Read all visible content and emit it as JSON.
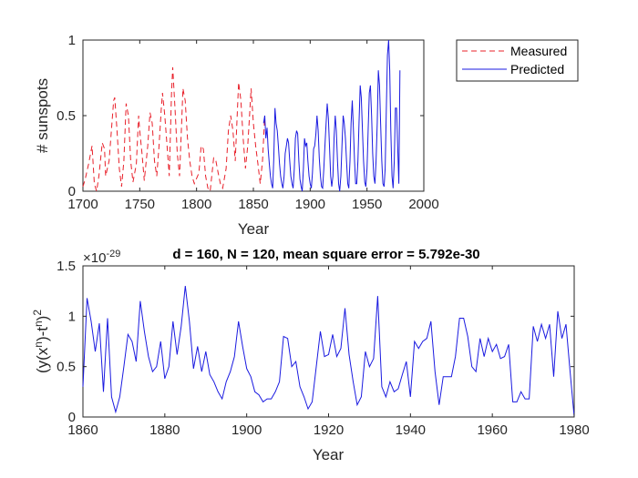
{
  "chart_data": [
    {
      "type": "line",
      "title": "",
      "xlabel": "Year",
      "ylabel": "# sunspots",
      "xlim": [
        1700,
        2000
      ],
      "ylim": [
        0,
        1
      ],
      "xticks": [
        "1700",
        "1750",
        "1800",
        "1850",
        "1900",
        "1950",
        "2000"
      ],
      "yticks": [
        "0",
        "0.5",
        "1"
      ],
      "grid": false,
      "legend_position": "top-right",
      "series": [
        {
          "name": "Measured",
          "color": "#e8202a",
          "style": "dashed",
          "x": [
            1700,
            1702,
            1705,
            1708,
            1710,
            1712,
            1714,
            1717,
            1719,
            1720,
            1723,
            1725,
            1727,
            1728,
            1730,
            1732,
            1734,
            1736,
            1738,
            1740,
            1742,
            1744,
            1747,
            1749,
            1750,
            1752,
            1754,
            1757,
            1759,
            1761,
            1763,
            1765,
            1767,
            1769,
            1770,
            1772,
            1774,
            1776,
            1778,
            1779,
            1781,
            1783,
            1785,
            1787,
            1788,
            1790,
            1792,
            1794,
            1796,
            1798,
            1802,
            1804,
            1806,
            1808,
            1810,
            1812,
            1815,
            1817,
            1819,
            1821,
            1823,
            1826,
            1828,
            1830,
            1832,
            1834,
            1837,
            1839,
            1841,
            1843,
            1845,
            1847,
            1848,
            1850,
            1852,
            1854,
            1856,
            1858,
            1860
          ],
          "y": [
            0.03,
            0.08,
            0.18,
            0.3,
            0.05,
            0.0,
            0.1,
            0.32,
            0.28,
            0.1,
            0.2,
            0.4,
            0.6,
            0.62,
            0.4,
            0.15,
            0.03,
            0.2,
            0.58,
            0.5,
            0.2,
            0.06,
            0.18,
            0.5,
            0.4,
            0.25,
            0.07,
            0.3,
            0.52,
            0.45,
            0.2,
            0.1,
            0.3,
            0.55,
            0.65,
            0.5,
            0.3,
            0.1,
            0.65,
            0.82,
            0.55,
            0.25,
            0.1,
            0.48,
            0.68,
            0.6,
            0.35,
            0.2,
            0.1,
            0.05,
            0.12,
            0.3,
            0.28,
            0.1,
            0.02,
            0.0,
            0.22,
            0.2,
            0.12,
            0.05,
            0.02,
            0.15,
            0.4,
            0.5,
            0.4,
            0.2,
            0.72,
            0.6,
            0.35,
            0.15,
            0.3,
            0.55,
            0.68,
            0.45,
            0.3,
            0.18,
            0.05,
            0.2,
            0.5
          ]
        },
        {
          "name": "Predicted",
          "color": "#1a1ae0",
          "style": "solid",
          "x": [
            1859,
            1860,
            1861,
            1862,
            1863,
            1864,
            1865,
            1866,
            1867,
            1868,
            1869,
            1870,
            1871,
            1872,
            1873,
            1874,
            1875,
            1876,
            1877,
            1878,
            1879,
            1880,
            1881,
            1882,
            1883,
            1884,
            1885,
            1886,
            1887,
            1888,
            1889,
            1890,
            1891,
            1892,
            1893,
            1894,
            1895,
            1896,
            1897,
            1898,
            1899,
            1900,
            1901,
            1902,
            1903,
            1904,
            1905,
            1906,
            1907,
            1908,
            1909,
            1910,
            1911,
            1912,
            1913,
            1914,
            1915,
            1916,
            1917,
            1918,
            1919,
            1920,
            1921,
            1922,
            1923,
            1924,
            1925,
            1926,
            1927,
            1928,
            1929,
            1930,
            1931,
            1932,
            1933,
            1934,
            1935,
            1936,
            1937,
            1938,
            1939,
            1940,
            1941,
            1942,
            1943,
            1944,
            1945,
            1946,
            1947,
            1948,
            1949,
            1950,
            1951,
            1952,
            1953,
            1954,
            1955,
            1956,
            1957,
            1958,
            1959,
            1960,
            1961,
            1962,
            1963,
            1964,
            1965,
            1966,
            1967,
            1968,
            1969,
            1970,
            1971,
            1972,
            1973,
            1974,
            1975,
            1976,
            1977,
            1978,
            1979
          ],
          "y": [
            0.45,
            0.5,
            0.35,
            0.42,
            0.28,
            0.18,
            0.1,
            0.05,
            0.02,
            0.22,
            0.55,
            0.45,
            0.4,
            0.3,
            0.18,
            0.1,
            0.05,
            0.02,
            0.1,
            0.25,
            0.3,
            0.35,
            0.32,
            0.2,
            0.1,
            0.05,
            0.02,
            0.15,
            0.35,
            0.4,
            0.38,
            0.2,
            0.08,
            0.03,
            0.0,
            0.15,
            0.35,
            0.3,
            0.32,
            0.2,
            0.1,
            0.05,
            0.02,
            0.12,
            0.28,
            0.3,
            0.38,
            0.5,
            0.4,
            0.22,
            0.1,
            0.03,
            0.02,
            0.15,
            0.3,
            0.45,
            0.58,
            0.48,
            0.3,
            0.1,
            0.03,
            0.1,
            0.35,
            0.5,
            0.4,
            0.2,
            0.05,
            0.0,
            0.1,
            0.3,
            0.5,
            0.45,
            0.35,
            0.2,
            0.05,
            0.02,
            0.2,
            0.45,
            0.6,
            0.42,
            0.2,
            0.05,
            0.05,
            0.2,
            0.45,
            0.7,
            0.62,
            0.4,
            0.2,
            0.06,
            0.03,
            0.15,
            0.4,
            0.65,
            0.7,
            0.5,
            0.25,
            0.1,
            0.05,
            0.2,
            0.45,
            0.8,
            0.7,
            0.45,
            0.2,
            0.05,
            0.03,
            0.15,
            0.55,
            0.9,
            1.0,
            0.8,
            0.4,
            0.1,
            0.02,
            0.2,
            0.55,
            0.55,
            0.3,
            0.05,
            0.8
          ]
        }
      ]
    },
    {
      "type": "line",
      "title": "d = 160,  N = 120,  mean square error = 5.792e-30",
      "xlabel": "Year",
      "ylabel_base": "(y(x",
      "ylabel_sup1": "n",
      "ylabel_mid": ")-t",
      "ylabel_sup2": "n",
      "ylabel_end": ")",
      "ylabel_sup3": "2",
      "exponent_base": "×10",
      "exponent_power": "-29",
      "xlim": [
        1860,
        1980
      ],
      "ylim": [
        0,
        1.5
      ],
      "xticks": [
        "1860",
        "1880",
        "1900",
        "1920",
        "1940",
        "1960",
        "1980"
      ],
      "yticks": [
        "0",
        "0.5",
        "1",
        "1.5"
      ],
      "grid": false,
      "series": [
        {
          "color": "#1a1ae0",
          "style": "solid",
          "x": [
            1860,
            1861,
            1862,
            1863,
            1864,
            1865,
            1866,
            1867,
            1868,
            1869,
            1870,
            1871,
            1872,
            1873,
            1874,
            1875,
            1876,
            1877,
            1878,
            1879,
            1880,
            1881,
            1882,
            1883,
            1884,
            1885,
            1886,
            1887,
            1888,
            1889,
            1890,
            1891,
            1892,
            1893,
            1894,
            1895,
            1896,
            1897,
            1898,
            1899,
            1900,
            1901,
            1902,
            1903,
            1904,
            1905,
            1906,
            1907,
            1908,
            1909,
            1910,
            1911,
            1912,
            1913,
            1914,
            1915,
            1916,
            1917,
            1918,
            1919,
            1920,
            1921,
            1922,
            1923,
            1924,
            1925,
            1926,
            1927,
            1928,
            1929,
            1930,
            1931,
            1932,
            1933,
            1934,
            1935,
            1936,
            1937,
            1938,
            1939,
            1940,
            1941,
            1942,
            1943,
            1944,
            1945,
            1946,
            1947,
            1948,
            1949,
            1950,
            1951,
            1952,
            1953,
            1954,
            1955,
            1956,
            1957,
            1958,
            1959,
            1960,
            1961,
            1962,
            1963,
            1964,
            1965,
            1966,
            1967,
            1968,
            1969,
            1970,
            1971,
            1972,
            1973,
            1974,
            1975,
            1976,
            1977,
            1978,
            1979,
            1980
          ],
          "y": [
            0.3,
            1.18,
            0.95,
            0.65,
            0.93,
            0.25,
            0.98,
            0.2,
            0.05,
            0.2,
            0.5,
            0.82,
            0.75,
            0.55,
            1.15,
            0.85,
            0.6,
            0.45,
            0.5,
            0.75,
            0.38,
            0.5,
            0.95,
            0.62,
            0.9,
            1.3,
            0.95,
            0.48,
            0.7,
            0.45,
            0.65,
            0.42,
            0.35,
            0.25,
            0.18,
            0.35,
            0.45,
            0.6,
            0.95,
            0.7,
            0.48,
            0.4,
            0.25,
            0.22,
            0.15,
            0.18,
            0.18,
            0.25,
            0.35,
            0.8,
            0.78,
            0.5,
            0.55,
            0.3,
            0.2,
            0.08,
            0.15,
            0.5,
            0.85,
            0.6,
            0.62,
            0.82,
            0.6,
            0.68,
            1.08,
            0.62,
            0.35,
            0.12,
            0.2,
            0.65,
            0.5,
            0.58,
            1.2,
            0.3,
            0.2,
            0.35,
            0.25,
            0.28,
            0.42,
            0.55,
            0.2,
            0.75,
            0.68,
            0.75,
            0.78,
            0.95,
            0.45,
            0.12,
            0.4,
            0.4,
            0.4,
            0.6,
            0.98,
            0.98,
            0.8,
            0.5,
            0.45,
            0.78,
            0.6,
            0.78,
            0.65,
            0.72,
            0.58,
            0.6,
            0.72,
            0.15,
            0.15,
            0.25,
            0.18,
            0.18,
            0.9,
            0.75,
            0.92,
            0.78,
            0.92,
            0.4,
            1.05,
            0.78,
            0.92,
            0.45,
            0.0
          ]
        }
      ]
    }
  ]
}
